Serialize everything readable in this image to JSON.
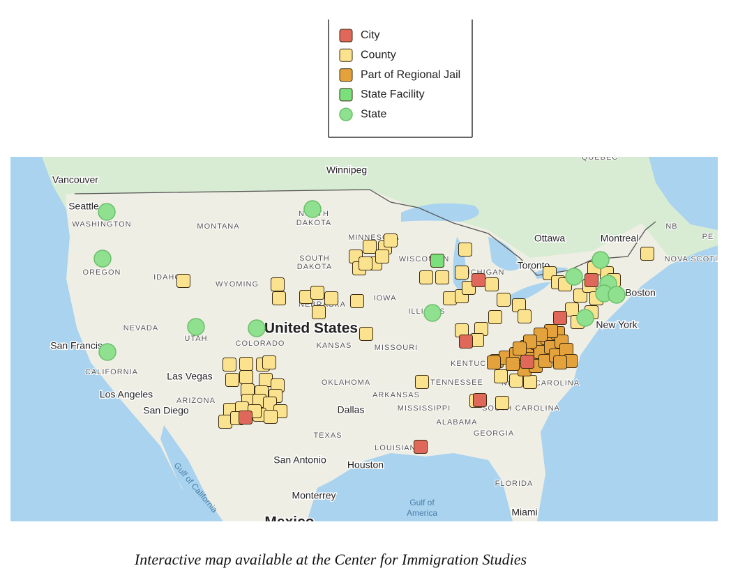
{
  "legend": {
    "items": [
      {
        "label": "City",
        "color": "#e0685a",
        "shape": "square"
      },
      {
        "label": "County",
        "color": "#fbe28e",
        "shape": "square"
      },
      {
        "label": "Part of Regional Jail",
        "color": "#e3a23c",
        "shape": "square"
      },
      {
        "label": "State Facility",
        "color": "#7be07b",
        "shape": "square"
      },
      {
        "label": "State",
        "color": "#8fe08f",
        "shape": "circle"
      }
    ]
  },
  "map": {
    "labels": [
      "Winnipeg",
      "Vancouver",
      "Seattle",
      "WASHINGTON",
      "MONTANA",
      "NORTH",
      "DAKOTA",
      "MINNESOTA",
      "SOUTH",
      "DAKOTA",
      "WISCONSIN",
      "MICHIGAN",
      "Ottawa",
      "Montreal",
      "NB",
      "PE",
      "Toronto",
      "Boston",
      "New York",
      "NOVA SCOTIA",
      "OREGON",
      "IDAHO",
      "WYOMING",
      "NEBRASKA",
      "IOWA",
      "ILLINOIS",
      "NEVADA",
      "UTAH",
      "United States",
      "COLORADO",
      "KANSAS",
      "MISSOURI",
      "San Francisco",
      "CALIFORNIA",
      "Las Vegas",
      "OKLAHOMA",
      "TENNESSEE",
      "KENTUCKY",
      "NORTH CAROLINA",
      "Los Angeles",
      "ARIZONA",
      "ARKANSAS",
      "San Diego",
      "Dallas",
      "MISSISSIPPI",
      "ALABAMA",
      "SOUTH CAROLINA",
      "GEORGIA",
      "TEXAS",
      "LOUISIANA",
      "San Antonio",
      "Houston",
      "FLORIDA",
      "Monterrey",
      "Gulf of",
      "America",
      "Miami",
      "Gulf of California",
      "QUEBEC",
      "Mexico"
    ]
  },
  "caption": "Interactive map available at the Center for Immigration Studies"
}
